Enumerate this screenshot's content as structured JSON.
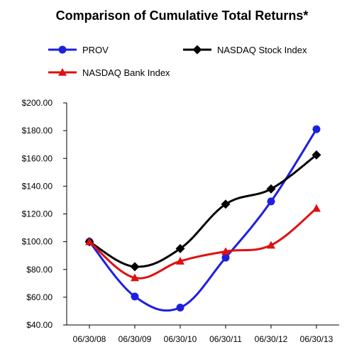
{
  "chart_data": {
    "type": "line",
    "title": "Comparison of Cumulative Total Returns*",
    "xlabel": "",
    "ylabel": "",
    "categories": [
      "06/30/08",
      "06/30/09",
      "06/30/10",
      "06/30/11",
      "06/30/12",
      "06/30/13"
    ],
    "ylim": [
      40,
      200
    ],
    "yticks": [
      40,
      60,
      80,
      100,
      120,
      140,
      160,
      180,
      200
    ],
    "ytick_labels": [
      "$40.00",
      "$60.00",
      "$80.00",
      "$100.00",
      "$120.00",
      "$140.00",
      "$160.00",
      "$180.00",
      "$200.00"
    ],
    "grid": false,
    "legend_position": "top",
    "series": [
      {
        "name": "PROV",
        "values": [
          100,
          60.5,
          52.5,
          88.5,
          129,
          181
        ],
        "color": "#1f1fe0",
        "marker": "circle"
      },
      {
        "name": "NASDAQ Stock Index",
        "values": [
          100,
          82,
          95,
          127,
          138,
          162.5
        ],
        "color": "#000000",
        "marker": "diamond"
      },
      {
        "name": "NASDAQ Bank Index",
        "values": [
          100,
          74,
          86,
          93,
          97.5,
          124
        ],
        "color": "#e01010",
        "marker": "triangle"
      }
    ]
  }
}
